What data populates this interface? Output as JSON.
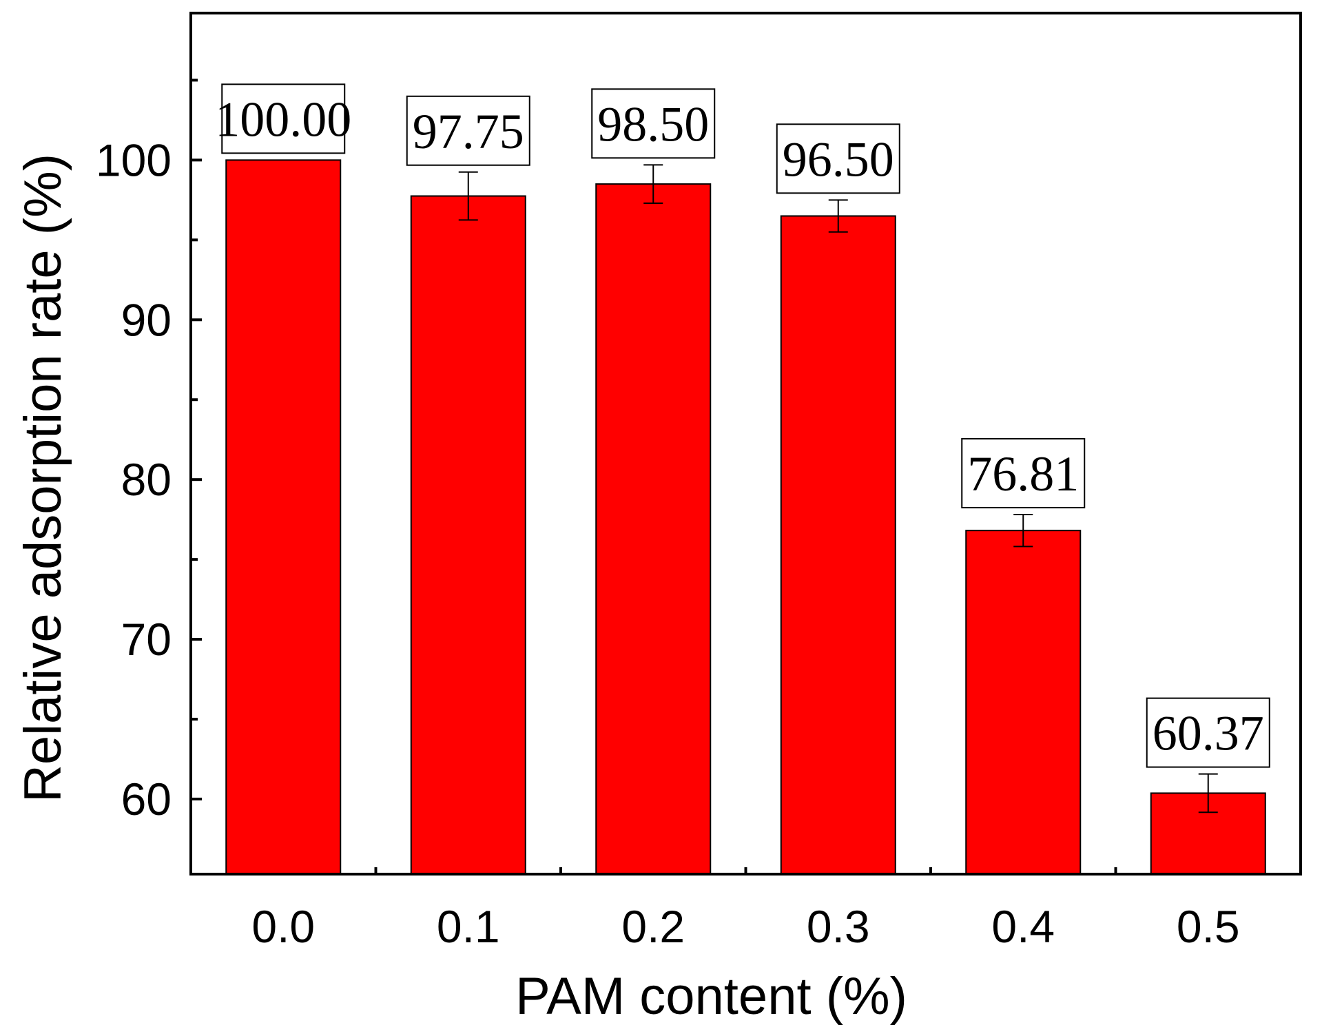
{
  "chart_data": {
    "type": "bar",
    "title": "",
    "xlabel": "PAM content (%)",
    "ylabel": "Relative adsorption rate (%)",
    "categories": [
      "0.0",
      "0.1",
      "0.2",
      "0.3",
      "0.4",
      "0.5"
    ],
    "values": [
      100.0,
      97.75,
      98.5,
      96.5,
      76.81,
      60.37
    ],
    "errors": [
      0,
      1.5,
      1.2,
      1.0,
      1.0,
      1.2
    ],
    "data_labels": [
      "100.00",
      "97.75",
      "98.50",
      "96.50",
      "76.81",
      "60.37"
    ],
    "ylim": [
      55.3,
      109.2
    ],
    "yticks": [
      60,
      70,
      80,
      90,
      100
    ],
    "ytick_labels": [
      "60",
      "70",
      "80",
      "90",
      "100"
    ],
    "grid": false,
    "bar_color": "#ff0000"
  }
}
